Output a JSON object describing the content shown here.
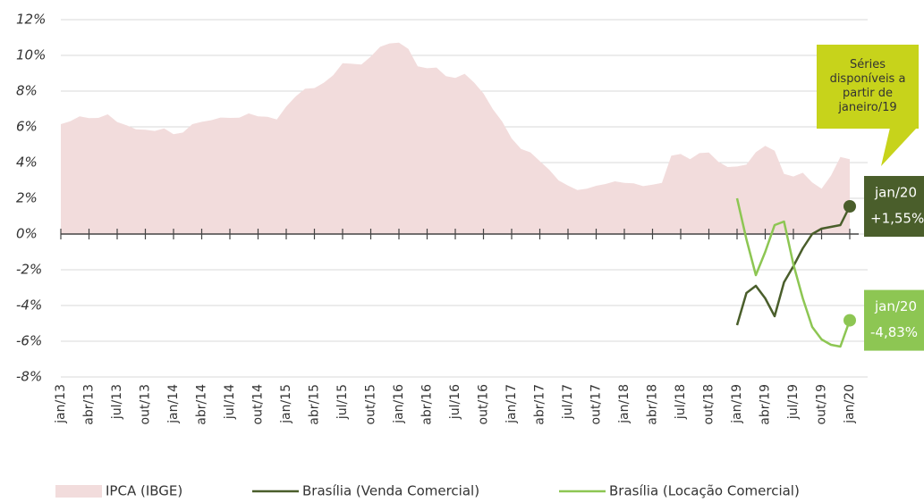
{
  "chart_data": {
    "type": "line",
    "categories": [
      "jan/13",
      null,
      null,
      "abr/13",
      null,
      null,
      "jul/13",
      null,
      null,
      "out/13",
      null,
      null,
      "jan/14",
      null,
      null,
      "abr/14",
      null,
      null,
      "jul/14",
      null,
      null,
      "out/14",
      null,
      null,
      "jan/15",
      null,
      null,
      "abr/15",
      null,
      null,
      "jul/15",
      null,
      null,
      "out/15",
      null,
      null,
      "jan/16",
      null,
      null,
      "abr/16",
      null,
      null,
      "jul/16",
      null,
      null,
      "out/16",
      null,
      null,
      "jan/17",
      null,
      null,
      "abr/17",
      null,
      null,
      "jul/17",
      null,
      null,
      "out/17",
      null,
      null,
      "jan/18",
      null,
      null,
      "abr/18",
      null,
      null,
      "jul/18",
      null,
      null,
      "out/18",
      null,
      null,
      "jan/19",
      null,
      null,
      "abr/19",
      null,
      null,
      "jul/19",
      null,
      null,
      "out/19",
      null,
      null,
      "jan/20"
    ],
    "series": [
      {
        "name": "IPCA (IBGE)",
        "style": "area",
        "color": "#f2dcdc",
        "values": [
          6.15,
          6.31,
          6.59,
          6.49,
          6.5,
          6.7,
          6.27,
          6.09,
          5.86,
          5.84,
          5.77,
          5.91,
          5.59,
          5.68,
          6.15,
          6.28,
          6.37,
          6.52,
          6.5,
          6.51,
          6.75,
          6.59,
          6.56,
          6.41,
          7.14,
          7.7,
          8.13,
          8.17,
          8.47,
          8.89,
          9.56,
          9.53,
          9.49,
          9.93,
          10.48,
          10.67,
          10.71,
          10.36,
          9.39,
          9.28,
          9.32,
          8.84,
          8.74,
          8.97,
          8.48,
          7.87,
          6.99,
          6.29,
          5.35,
          4.76,
          4.57,
          4.08,
          3.6,
          3.0,
          2.71,
          2.46,
          2.54,
          2.7,
          2.8,
          2.95,
          2.86,
          2.84,
          2.68,
          2.76,
          2.86,
          4.39,
          4.48,
          4.19,
          4.53,
          4.56,
          4.05,
          3.75,
          3.78,
          3.89,
          4.58,
          4.94,
          4.66,
          3.37,
          3.22,
          3.43,
          2.89,
          2.54,
          3.27,
          4.31,
          4.19
        ]
      },
      {
        "name": "Brasília (Venda Comercial)",
        "style": "line",
        "color": "#4a5e2b",
        "values": [
          null,
          null,
          null,
          null,
          null,
          null,
          null,
          null,
          null,
          null,
          null,
          null,
          null,
          null,
          null,
          null,
          null,
          null,
          null,
          null,
          null,
          null,
          null,
          null,
          null,
          null,
          null,
          null,
          null,
          null,
          null,
          null,
          null,
          null,
          null,
          null,
          null,
          null,
          null,
          null,
          null,
          null,
          null,
          null,
          null,
          null,
          null,
          null,
          null,
          null,
          null,
          null,
          null,
          null,
          null,
          null,
          null,
          null,
          null,
          null,
          null,
          null,
          null,
          null,
          null,
          null,
          null,
          null,
          null,
          null,
          null,
          null,
          -5.1,
          -3.3,
          -2.9,
          -3.6,
          -4.6,
          -2.7,
          -1.8,
          -0.8,
          0.0,
          0.3,
          0.4,
          0.5,
          1.55
        ],
        "value_labels": [
          null,
          null,
          null,
          null,
          null,
          null,
          null,
          null,
          null,
          null,
          null,
          null,
          null,
          null,
          null,
          null,
          null,
          null,
          null,
          null,
          null,
          null,
          null,
          null,
          null,
          null,
          null,
          null,
          null,
          null,
          null,
          null,
          null,
          null,
          null,
          null,
          null,
          null,
          null,
          null,
          null,
          null,
          null,
          null,
          null,
          null,
          null,
          null,
          null,
          null,
          null,
          null,
          null,
          null,
          null,
          null,
          null,
          null,
          null,
          null,
          null,
          null,
          null,
          null,
          null,
          null,
          null,
          null,
          null,
          null,
          null,
          null,
          null,
          null,
          null,
          null,
          null,
          null,
          null,
          null,
          null,
          null,
          null,
          null,
          "+1,55%"
        ]
      },
      {
        "name": "Brasília (Locação Comercial)",
        "style": "line",
        "color": "#8dc653",
        "values": [
          null,
          null,
          null,
          null,
          null,
          null,
          null,
          null,
          null,
          null,
          null,
          null,
          null,
          null,
          null,
          null,
          null,
          null,
          null,
          null,
          null,
          null,
          null,
          null,
          null,
          null,
          null,
          null,
          null,
          null,
          null,
          null,
          null,
          null,
          null,
          null,
          null,
          null,
          null,
          null,
          null,
          null,
          null,
          null,
          null,
          null,
          null,
          null,
          null,
          null,
          null,
          null,
          null,
          null,
          null,
          null,
          null,
          null,
          null,
          null,
          null,
          null,
          null,
          null,
          null,
          null,
          null,
          null,
          null,
          null,
          null,
          null,
          2.0,
          -0.3,
          -2.3,
          -1.0,
          0.5,
          0.7,
          -1.7,
          -3.6,
          -5.2,
          -5.9,
          -6.2,
          -6.3,
          -4.83
        ],
        "value_labels": [
          null,
          null,
          null,
          null,
          null,
          null,
          null,
          null,
          null,
          null,
          null,
          null,
          null,
          null,
          null,
          null,
          null,
          null,
          null,
          null,
          null,
          null,
          null,
          null,
          null,
          null,
          null,
          null,
          null,
          null,
          null,
          null,
          null,
          null,
          null,
          null,
          null,
          null,
          null,
          null,
          null,
          null,
          null,
          null,
          null,
          null,
          null,
          null,
          null,
          null,
          null,
          null,
          null,
          null,
          null,
          null,
          null,
          null,
          null,
          null,
          null,
          null,
          null,
          null,
          null,
          null,
          null,
          null,
          null,
          null,
          null,
          null,
          null,
          null,
          null,
          null,
          null,
          null,
          null,
          null,
          null,
          null,
          null,
          null,
          "-4,83%"
        ]
      }
    ],
    "ylim": [
      -8,
      12
    ],
    "yticks": [
      {
        "value": -8,
        "label": "-8%"
      },
      {
        "value": -6,
        "label": "-6%"
      },
      {
        "value": -4,
        "label": "-4%"
      },
      {
        "value": -2,
        "label": "-2%"
      },
      {
        "value": 0,
        "label": "0%"
      },
      {
        "value": 2,
        "label": "2%"
      },
      {
        "value": 4,
        "label": "4%"
      },
      {
        "value": 6,
        "label": "6%"
      },
      {
        "value": 8,
        "label": "8%"
      },
      {
        "value": 10,
        "label": "10%"
      },
      {
        "value": 12,
        "label": "12%"
      }
    ],
    "grid": true,
    "annotation": "Séries disponíveis a partir de janeiro/19",
    "annotation_color": "#c7d31b"
  }
}
